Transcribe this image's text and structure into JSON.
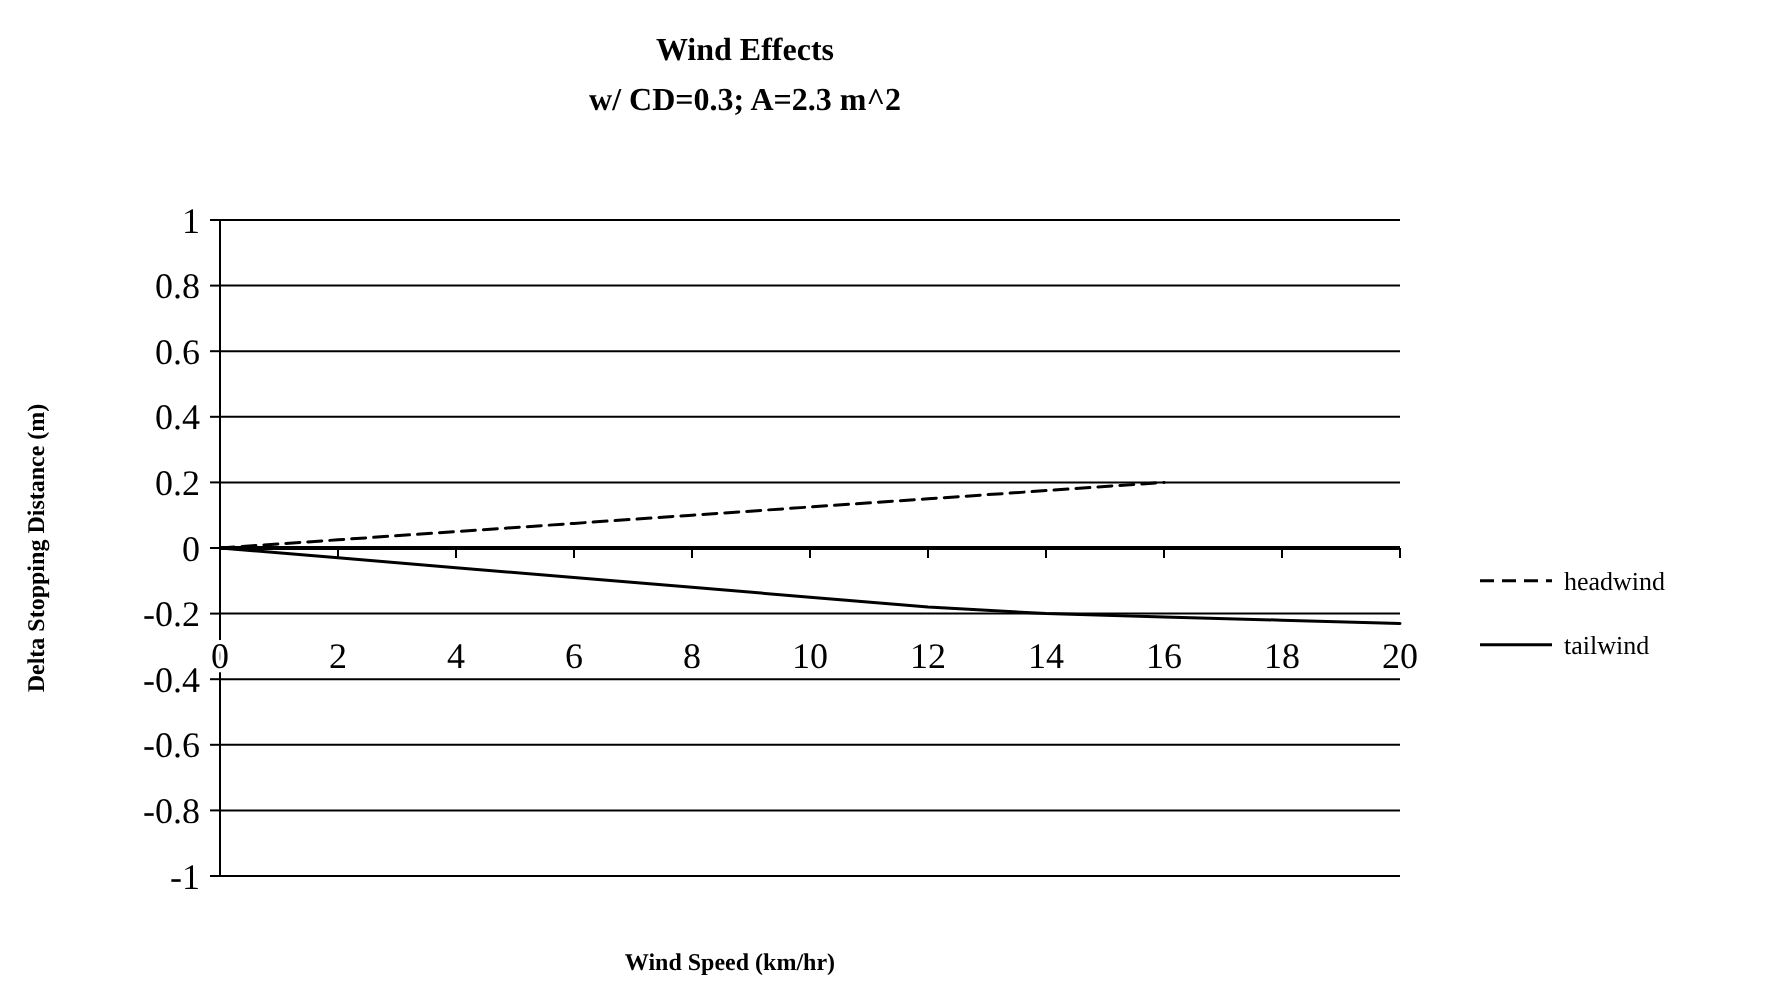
{
  "chart_data": {
    "type": "line",
    "title": "Wind Effects",
    "subtitle": "w/ CD=0.3; A=2.3 m^2",
    "xlabel": "Wind Speed (km/hr)",
    "ylabel": "Delta Stopping Distance (m)",
    "x": [
      0,
      2,
      4,
      6,
      8,
      10,
      12,
      14,
      16,
      18,
      20
    ],
    "series": [
      {
        "name": "headwind",
        "color": "#000000",
        "line_style": "dashed",
        "values": [
          0,
          0.025,
          0.05,
          0.075,
          0.1,
          0.125,
          0.15,
          0.175,
          0.2,
          null,
          null
        ]
      },
      {
        "name": "tailwind",
        "color": "#000000",
        "line_style": "solid",
        "values": [
          0,
          -0.03,
          -0.06,
          -0.09,
          -0.12,
          -0.15,
          -0.18,
          -0.2,
          -0.21,
          -0.22,
          -0.23
        ]
      }
    ],
    "xlim": [
      0,
      20
    ],
    "xticks": [
      0,
      2,
      4,
      6,
      8,
      10,
      12,
      14,
      16,
      18,
      20
    ],
    "ylim": [
      -1,
      1
    ],
    "yticks": [
      -1,
      -0.8,
      -0.6,
      -0.4,
      -0.2,
      0,
      0.2,
      0.4,
      0.6,
      0.8,
      1
    ],
    "grid": "y",
    "legend": "right",
    "marker": "none"
  }
}
